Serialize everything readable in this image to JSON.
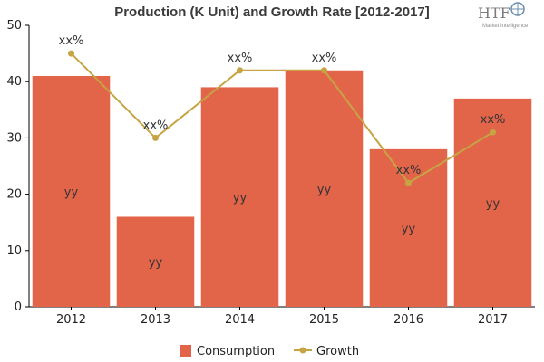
{
  "logo": {
    "name": "HTF",
    "tagline": "Market Intelligence"
  },
  "colors": {
    "bar": "#e2654a",
    "line": "#c6a444",
    "axis": "#000000",
    "background": "#ffffff"
  },
  "chart_data": {
    "type": "bar",
    "title": "Production (K Unit) and Growth Rate [2012-2017]",
    "xlabel": "",
    "ylabel": "",
    "categories": [
      "2012",
      "2013",
      "2014",
      "2015",
      "2016",
      "2017"
    ],
    "ylim": [
      0,
      50
    ],
    "yticks": [
      0,
      10,
      20,
      30,
      40,
      50
    ],
    "grid": false,
    "legend_position": "bottom-center",
    "series": [
      {
        "name": "Consumption",
        "type": "bar",
        "values": [
          41,
          16,
          39,
          42,
          28,
          37
        ],
        "labels": [
          "yy",
          "yy",
          "yy",
          "yy",
          "yy",
          "yy"
        ]
      },
      {
        "name": "Growth",
        "type": "line",
        "values": [
          45,
          30,
          42,
          42,
          22,
          31
        ],
        "labels": [
          "xx%",
          "xx%",
          "xx%",
          "xx%",
          "xx%",
          "xx%"
        ]
      }
    ]
  }
}
